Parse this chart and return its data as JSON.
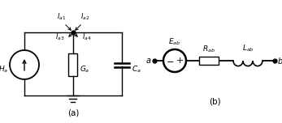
{
  "fig_width": 3.47,
  "fig_height": 1.52,
  "dpi": 100,
  "bg_color": "#ffffff",
  "line_color": "#000000",
  "lw": 1.0,
  "labels": {
    "Ha": "$H_a$",
    "Ga": "$G_a$",
    "Ca": "$C_a$",
    "Ia1": "$I_{a1}$",
    "Ia2": "$I_{a2}$",
    "Ia3": "$I_{a3}$",
    "Ia4": "$I_{a4}$",
    "Eab": "$E_{ab}$",
    "Rab": "$R_{ab}$",
    "Lab": "$L_{ab}$",
    "a_label": "$a$",
    "b_label": "$b$",
    "panel_a": "(a)",
    "panel_b": "(b)"
  },
  "fontsize_label": 6.5,
  "fontsize_panel": 7.5,
  "fontsize_curr": 6.0,
  "fontsize_ab": 7.0
}
